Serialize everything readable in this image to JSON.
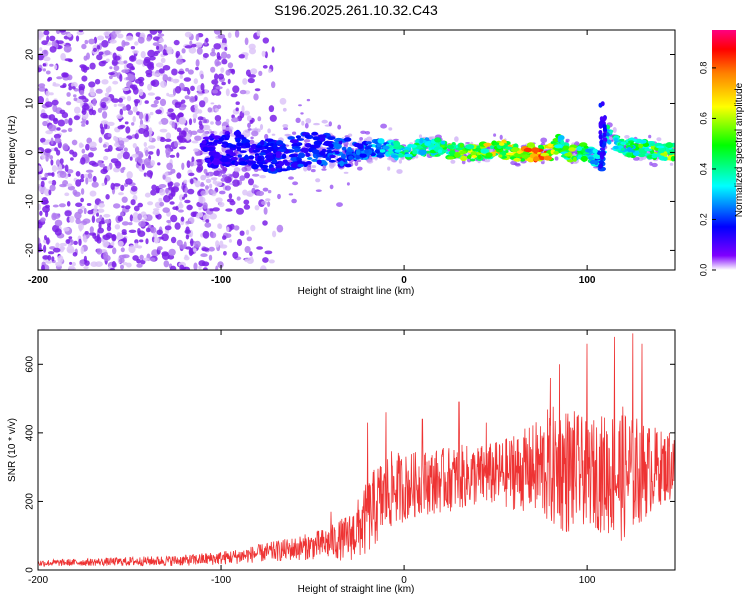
{
  "title": "S196.2025.261.10.32.C43",
  "chart_data": [
    {
      "type": "heatmap",
      "description_role": "spectrogram",
      "title": "S196.2025.261.10.32.C43",
      "xlabel": "Height of straight line (km)",
      "ylabel": "Frequency (Hz)",
      "xlim": [
        -200,
        148
      ],
      "ylim": [
        -24,
        25
      ],
      "xticks": [
        -200,
        -100,
        0,
        100
      ],
      "yticks": [
        -20,
        -10,
        0,
        10,
        20
      ],
      "colorbar": {
        "label": "Normalized spectral amplitude",
        "range": [
          0,
          0.95
        ],
        "ticks": [
          0.0,
          0.2,
          0.4,
          0.6,
          0.8
        ],
        "tick_labels": [
          "0.0",
          "0.2",
          "0.4",
          "0.6",
          "0.8"
        ],
        "colors": [
          "#ffffff",
          "#7f00ff",
          "#0000ff",
          "#00ffff",
          "#00ff00",
          "#ffff00",
          "#ff8000",
          "#ff0000",
          "#ff0080"
        ]
      },
      "ridge": {
        "x": [
          -110,
          -90,
          -70,
          -50,
          -30,
          -10,
          0,
          10,
          20,
          30,
          40,
          50,
          60,
          70,
          80,
          85,
          90,
          100,
          105,
          108,
          110,
          120,
          130,
          140,
          148
        ],
        "center_hz": [
          0,
          1,
          -1,
          1,
          0,
          1,
          0,
          1,
          1,
          0,
          0,
          1,
          0,
          0,
          0,
          2,
          0,
          0,
          -1,
          -2,
          4,
          1,
          1,
          0,
          0
        ],
        "amplitude": [
          0.15,
          0.2,
          0.2,
          0.25,
          0.25,
          0.35,
          0.45,
          0.5,
          0.55,
          0.6,
          0.65,
          0.7,
          0.8,
          0.85,
          0.8,
          0.5,
          0.6,
          0.5,
          0.35,
          0.3,
          0.4,
          0.5,
          0.55,
          0.6,
          0.65
        ]
      },
      "noise_region_x": [
        -200,
        -60
      ]
    },
    {
      "type": "line",
      "xlabel": "Height of straight line (km)",
      "ylabel": "SNR (10 * v/v)",
      "xlim": [
        -200,
        148
      ],
      "ylim": [
        0,
        700
      ],
      "xticks": [
        -200,
        -100,
        0,
        100
      ],
      "yticks": [
        0,
        200,
        400,
        600
      ],
      "series": [
        {
          "name": "SNR",
          "color": "#ee3333",
          "x": [
            -200,
            -180,
            -160,
            -140,
            -120,
            -100,
            -90,
            -80,
            -70,
            -60,
            -50,
            -40,
            -30,
            -25,
            -20,
            -15,
            -10,
            -5,
            0,
            10,
            20,
            30,
            40,
            50,
            60,
            70,
            80,
            90,
            100,
            110,
            120,
            130,
            140,
            148
          ],
          "base": [
            20,
            22,
            24,
            26,
            28,
            35,
            40,
            48,
            55,
            62,
            70,
            80,
            95,
            120,
            150,
            190,
            220,
            240,
            240,
            255,
            260,
            270,
            275,
            280,
            285,
            295,
            300,
            290,
            285,
            280,
            280,
            290,
            300,
            300
          ],
          "spread": [
            10,
            10,
            12,
            14,
            16,
            20,
            22,
            26,
            30,
            35,
            40,
            50,
            70,
            90,
            110,
            120,
            120,
            110,
            100,
            95,
            95,
            95,
            90,
            95,
            110,
            130,
            180,
            190,
            150,
            180,
            200,
            150,
            110,
            100
          ],
          "peaks_x": [
            -40,
            -20,
            -10,
            10,
            30,
            45,
            60,
            80,
            85,
            100,
            115,
            125,
            130,
            145
          ],
          "peaks_y": [
            170,
            430,
            460,
            440,
            490,
            430,
            390,
            560,
            600,
            660,
            680,
            690,
            660,
            400
          ]
        }
      ]
    }
  ]
}
